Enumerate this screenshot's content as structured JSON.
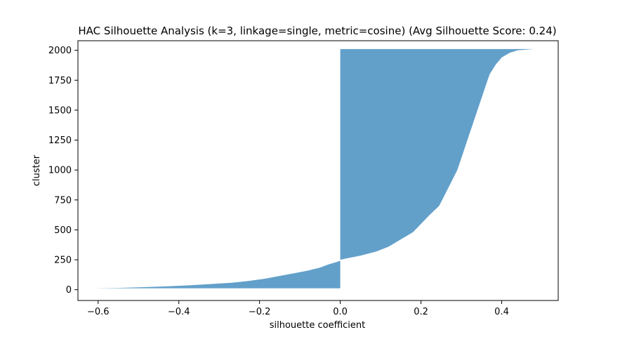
{
  "chart_data": {
    "type": "area",
    "title": "HAC Silhouette Analysis (k=3, linkage=single, metric=cosine) (Avg Silhouette Score: 0.24)",
    "xlabel": "silhouette coefficient",
    "ylabel": "cluster",
    "xlim": [
      -0.65,
      0.54
    ],
    "ylim": [
      -90,
      2080
    ],
    "x_ticks": [
      -0.6,
      -0.4,
      -0.2,
      0.0,
      0.2,
      0.4
    ],
    "x_tick_labels": [
      "−0.6",
      "−0.4",
      "−0.2",
      "0.0",
      "0.2",
      "0.4"
    ],
    "y_ticks": [
      0,
      250,
      500,
      750,
      1000,
      1250,
      1500,
      1750,
      2000
    ],
    "y_tick_labels": [
      "0",
      "250",
      "500",
      "750",
      "1000",
      "1250",
      "1500",
      "1750",
      "2000"
    ],
    "grid": false,
    "series": [
      {
        "color": "#1f77b4",
        "alpha": 0.7,
        "baseline": 0,
        "points": [
          {
            "y": 12,
            "x": -0.61
          },
          {
            "y": 15,
            "x": -0.55
          },
          {
            "y": 20,
            "x": -0.5
          },
          {
            "y": 28,
            "x": -0.43
          },
          {
            "y": 38,
            "x": -0.37
          },
          {
            "y": 48,
            "x": -0.32
          },
          {
            "y": 58,
            "x": -0.27
          },
          {
            "y": 72,
            "x": -0.23
          },
          {
            "y": 90,
            "x": -0.19
          },
          {
            "y": 115,
            "x": -0.15
          },
          {
            "y": 140,
            "x": -0.11
          },
          {
            "y": 160,
            "x": -0.08
          },
          {
            "y": 185,
            "x": -0.05
          },
          {
            "y": 210,
            "x": -0.03
          },
          {
            "y": 230,
            "x": -0.01
          },
          {
            "y": 242,
            "x": 0.0
          },
          {
            "y": 250,
            "x": 0.0
          },
          {
            "y": 265,
            "x": 0.02
          },
          {
            "y": 285,
            "x": 0.05
          },
          {
            "y": 320,
            "x": 0.09
          },
          {
            "y": 360,
            "x": 0.12
          },
          {
            "y": 420,
            "x": 0.15
          },
          {
            "y": 480,
            "x": 0.18
          },
          {
            "y": 550,
            "x": 0.2
          },
          {
            "y": 620,
            "x": 0.22
          },
          {
            "y": 700,
            "x": 0.245
          },
          {
            "y": 800,
            "x": 0.26
          },
          {
            "y": 900,
            "x": 0.275
          },
          {
            "y": 1000,
            "x": 0.29
          },
          {
            "y": 1100,
            "x": 0.3
          },
          {
            "y": 1200,
            "x": 0.31
          },
          {
            "y": 1300,
            "x": 0.32
          },
          {
            "y": 1400,
            "x": 0.33
          },
          {
            "y": 1500,
            "x": 0.34
          },
          {
            "y": 1600,
            "x": 0.35
          },
          {
            "y": 1700,
            "x": 0.36
          },
          {
            "y": 1800,
            "x": 0.37
          },
          {
            "y": 1880,
            "x": 0.385
          },
          {
            "y": 1940,
            "x": 0.4
          },
          {
            "y": 1980,
            "x": 0.42
          },
          {
            "y": 2000,
            "x": 0.44
          },
          {
            "y": 2010,
            "x": 0.48
          }
        ]
      }
    ]
  }
}
